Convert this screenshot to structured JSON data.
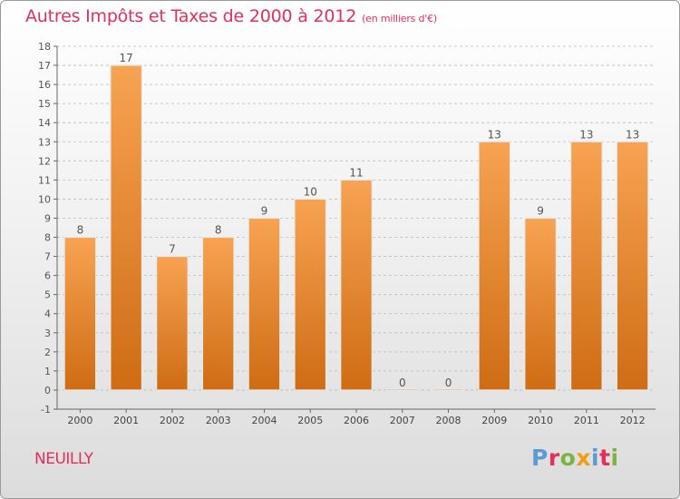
{
  "title": "Autres Impôts et Taxes de 2000 à 2012",
  "unit": "(en milliers d'€)",
  "place": "NEUILLY",
  "logo": {
    "text": "Proxiti",
    "colors": [
      "#5a9bd5",
      "#e3305a",
      "#7cb342",
      "#f39c12",
      "#5a9bd5",
      "#e3305a",
      "#7cb342"
    ]
  },
  "colors": {
    "bar_top": "#f7a352",
    "bar_bottom": "#cf6c14",
    "text": "#e3305a",
    "axis": "#666666",
    "grid": "#bbbbbb"
  },
  "chart_data": {
    "type": "bar",
    "title": "Autres Impôts et Taxes de 2000 à 2012",
    "subtitle": "(en milliers d'€)",
    "categories": [
      "2000",
      "2001",
      "2002",
      "2003",
      "2004",
      "2005",
      "2006",
      "2007",
      "2008",
      "2009",
      "2010",
      "2011",
      "2012"
    ],
    "values": [
      8,
      17,
      7,
      8,
      9,
      10,
      11,
      0,
      0,
      13,
      9,
      13,
      13
    ],
    "ylim": [
      -1,
      18
    ],
    "yticks": [
      -1,
      0,
      1,
      2,
      3,
      4,
      5,
      6,
      7,
      8,
      9,
      10,
      11,
      12,
      13,
      14,
      15,
      16,
      17,
      18
    ],
    "grid": "horizontal dashed",
    "data_labels": true
  }
}
